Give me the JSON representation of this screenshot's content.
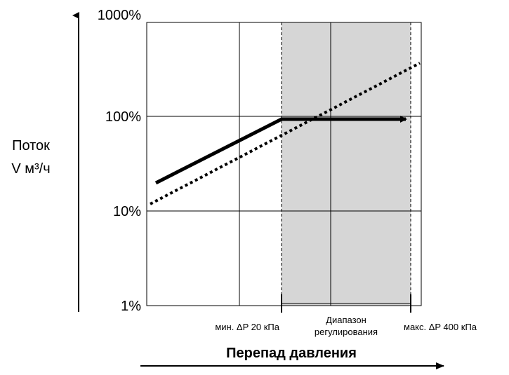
{
  "chart_data": {
    "type": "line",
    "yscale": "log",
    "ylim": [
      "1%",
      "1000%"
    ],
    "y_ticks": [
      "1000%",
      "100%",
      "10%",
      "1%"
    ],
    "ylabel_lines": [
      "Поток",
      "V м³/ч"
    ],
    "xlabel": "Перепад давления",
    "x_annotations": {
      "min": "мин. ΔP 20 кПа",
      "range_line1": "Диапазон",
      "range_line2": "регулирования",
      "max": "макс. ΔP 400  кПа"
    },
    "grid": true,
    "shaded_region": "regulating range",
    "series": [
      {
        "style": "solid-arrow",
        "points": [
          {
            "x": "start",
            "y": 20
          },
          {
            "x": "мин. ΔP 20 кПа",
            "y": 100
          },
          {
            "x": "макс. ΔP 400  кПа",
            "y": 100
          }
        ]
      },
      {
        "style": "dotted",
        "points": [
          {
            "x": "start",
            "y": 12
          },
          {
            "x": "end",
            "y": 350
          }
        ]
      }
    ]
  },
  "colors": {
    "shade": "#d6d6d6",
    "grid": "#000000",
    "line": "#000000"
  }
}
